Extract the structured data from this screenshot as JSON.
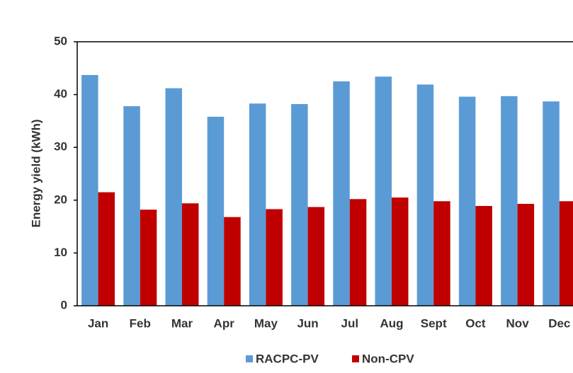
{
  "chart_data": {
    "type": "bar",
    "y_label": "Energy yield (kWh)",
    "categories": [
      "Jan",
      "Feb",
      "Mar",
      "Apr",
      "May",
      "Jun",
      "Jul",
      "Aug",
      "Sept",
      "Oct",
      "Nov",
      "Dec"
    ],
    "series": [
      {
        "name": "RACPC-PV",
        "color": "#5b9bd5",
        "values": [
          43.7,
          37.8,
          41.2,
          35.8,
          38.3,
          38.2,
          42.5,
          43.4,
          41.9,
          39.6,
          39.7,
          38.7
        ]
      },
      {
        "name": "Non-CPV",
        "color": "#c00000",
        "values": [
          21.5,
          18.2,
          19.4,
          16.8,
          18.3,
          18.7,
          20.2,
          20.5,
          19.8,
          18.9,
          19.3,
          19.8
        ]
      }
    ],
    "ylim": [
      0,
      50
    ],
    "yticks": [
      0,
      10,
      20,
      30,
      40,
      50
    ],
    "grid": false
  }
}
